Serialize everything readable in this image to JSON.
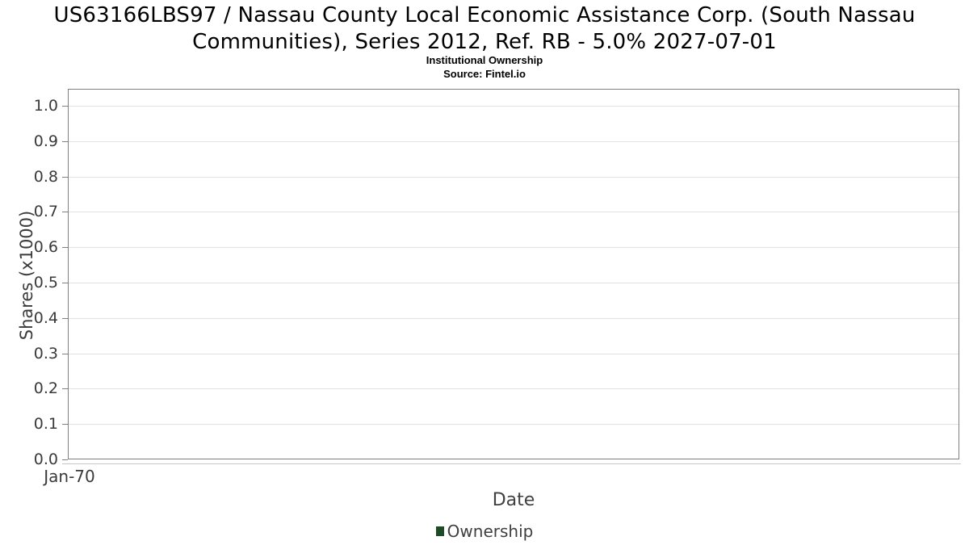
{
  "header": {
    "title_lines": [
      "US63166LBS97 / Nassau County Local Economic Assistance Corp. (South Nassau",
      "Communities), Series 2012, Ref. RB - 5.0% 2027-07-01"
    ],
    "subtitle": "Institutional Ownership",
    "source": "Source: Fintel.io"
  },
  "axes": {
    "y_label": "Shares (x1000)",
    "x_label": "Date",
    "y_ticks": [
      "1.0",
      "0.9",
      "0.8",
      "0.7",
      "0.6",
      "0.5",
      "0.4",
      "0.3",
      "0.2",
      "0.1",
      "0.0"
    ],
    "x_ticks": [
      "Jan-70"
    ]
  },
  "legend": {
    "label": "Ownership",
    "marker_color": "#1d4b27"
  },
  "colors": {
    "plot_border": "#7f7f7f",
    "gridline": "#e2e2e2",
    "tick": "#808080",
    "x_axis_line": "#c6c6c6",
    "axis_text": "#3a3a3a",
    "title_text": "#000000"
  },
  "chart_data": {
    "type": "line",
    "title": "US63166LBS97 / Nassau County Local Economic Assistance Corp. (South Nassau Communities), Series 2012, Ref. RB - 5.0% 2027-07-01",
    "subtitle": "Institutional Ownership",
    "source": "Source: Fintel.io",
    "xlabel": "Date",
    "ylabel": "Shares (x1000)",
    "x_tick_labels": [
      "Jan-70"
    ],
    "y_tick_labels": [
      0.0,
      0.1,
      0.2,
      0.3,
      0.4,
      0.5,
      0.6,
      0.7,
      0.8,
      0.9,
      1.0
    ],
    "ylim": [
      0.0,
      1.05
    ],
    "grid": true,
    "legend_position": "bottom",
    "series": [
      {
        "name": "Ownership",
        "color": "#1d4b27",
        "x": [],
        "values": []
      }
    ]
  }
}
